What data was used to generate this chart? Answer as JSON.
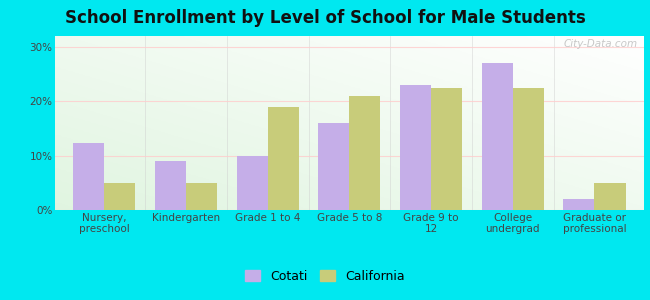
{
  "title": "School Enrollment by Level of School for Male Students",
  "categories": [
    "Nursery,\npreschool",
    "Kindergarten",
    "Grade 1 to 4",
    "Grade 5 to 8",
    "Grade 9 to\n12",
    "College\nundergrad",
    "Graduate or\nprofessional"
  ],
  "cotati": [
    12.3,
    9.0,
    10.0,
    16.0,
    23.0,
    27.0,
    2.0
  ],
  "california": [
    5.0,
    5.0,
    19.0,
    21.0,
    22.5,
    22.5,
    5.0
  ],
  "cotati_color": "#c5aee8",
  "california_color": "#c8cc7a",
  "background_outer": "#00e8f0",
  "background_inner_tl": "#f5fff5",
  "background_inner_br": "#d8f0d8",
  "title_fontsize": 12,
  "tick_fontsize": 7.5,
  "legend_fontsize": 9,
  "ylim": [
    0,
    32
  ],
  "yticks": [
    0,
    10,
    20,
    30
  ],
  "ytick_labels": [
    "0%",
    "10%",
    "20%",
    "30%"
  ],
  "bar_width": 0.38,
  "legend_labels": [
    "Cotati",
    "California"
  ],
  "watermark": "City-Data.com"
}
